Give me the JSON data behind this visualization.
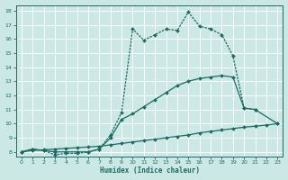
{
  "xlabel": "Humidex (Indice chaleur)",
  "bg_color": "#cce8e4",
  "grid_color": "#b0d8d3",
  "line_color": "#1a6b62",
  "xlim": [
    -0.5,
    23.5
  ],
  "ylim": [
    7.7,
    18.4
  ],
  "xticks": [
    0,
    1,
    2,
    3,
    4,
    5,
    6,
    7,
    8,
    9,
    10,
    11,
    12,
    13,
    14,
    15,
    16,
    17,
    18,
    19,
    20,
    21,
    22,
    23
  ],
  "yticks": [
    8,
    9,
    10,
    11,
    12,
    13,
    14,
    15,
    16,
    17,
    18
  ],
  "line1_x": [
    0,
    1,
    2,
    3,
    4,
    5,
    6,
    7,
    8,
    9,
    10,
    11,
    12,
    13,
    14,
    15,
    16,
    17,
    18,
    19,
    20,
    21
  ],
  "line1_y": [
    8.0,
    8.2,
    8.1,
    7.8,
    7.9,
    7.9,
    8.0,
    8.2,
    9.2,
    10.8,
    16.7,
    15.9,
    16.3,
    16.7,
    16.6,
    17.9,
    16.9,
    16.7,
    16.3,
    14.8,
    11.1,
    11.0
  ],
  "line2_x": [
    0,
    1,
    2,
    3,
    4,
    5,
    6,
    7,
    8,
    9,
    10,
    11,
    12,
    13,
    14,
    15,
    16,
    17,
    18,
    19,
    20,
    21,
    23
  ],
  "line2_y": [
    8.0,
    8.2,
    8.1,
    8.0,
    8.0,
    8.0,
    8.0,
    8.2,
    9.0,
    10.3,
    10.7,
    11.2,
    11.7,
    12.2,
    12.7,
    13.0,
    13.2,
    13.3,
    13.4,
    13.3,
    11.1,
    11.0,
    10.0
  ],
  "line3_x": [
    0,
    1,
    2,
    3,
    4,
    5,
    6,
    7,
    8,
    9,
    10,
    11,
    12,
    13,
    14,
    15,
    16,
    17,
    18,
    19,
    20,
    21,
    22,
    23
  ],
  "line3_y": [
    8.0,
    8.1,
    8.15,
    8.2,
    8.25,
    8.3,
    8.35,
    8.4,
    8.5,
    8.6,
    8.7,
    8.8,
    8.9,
    9.0,
    9.1,
    9.2,
    9.35,
    9.45,
    9.55,
    9.65,
    9.75,
    9.82,
    9.9,
    10.0
  ]
}
